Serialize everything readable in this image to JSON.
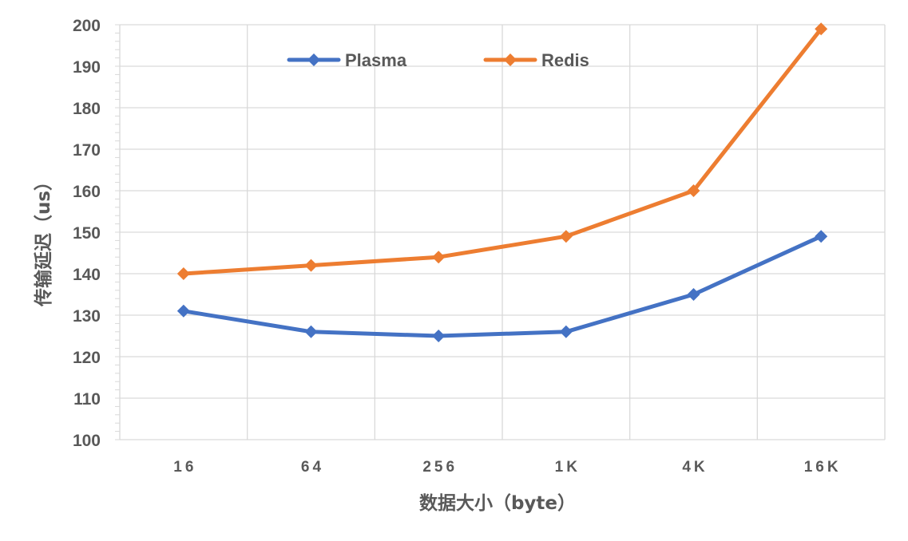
{
  "chart_data": {
    "type": "line",
    "title": "",
    "xlabel": "数据大小（byte）",
    "ylabel": "传输延迟（us）",
    "categories": [
      "16",
      "64",
      "256",
      "1K",
      "4K",
      "16K"
    ],
    "ylim": [
      100,
      200
    ],
    "yticks": [
      100,
      110,
      120,
      130,
      140,
      150,
      160,
      170,
      180,
      190,
      200
    ],
    "grid": true,
    "legend": "top-center",
    "marker": "diamond",
    "series": [
      {
        "name": "Plasma",
        "color": "#4472c4",
        "values": [
          131,
          126,
          125,
          126,
          135,
          149
        ]
      },
      {
        "name": "Redis",
        "color": "#ed7d31",
        "values": [
          140,
          142,
          144,
          149,
          160,
          199
        ]
      }
    ]
  }
}
